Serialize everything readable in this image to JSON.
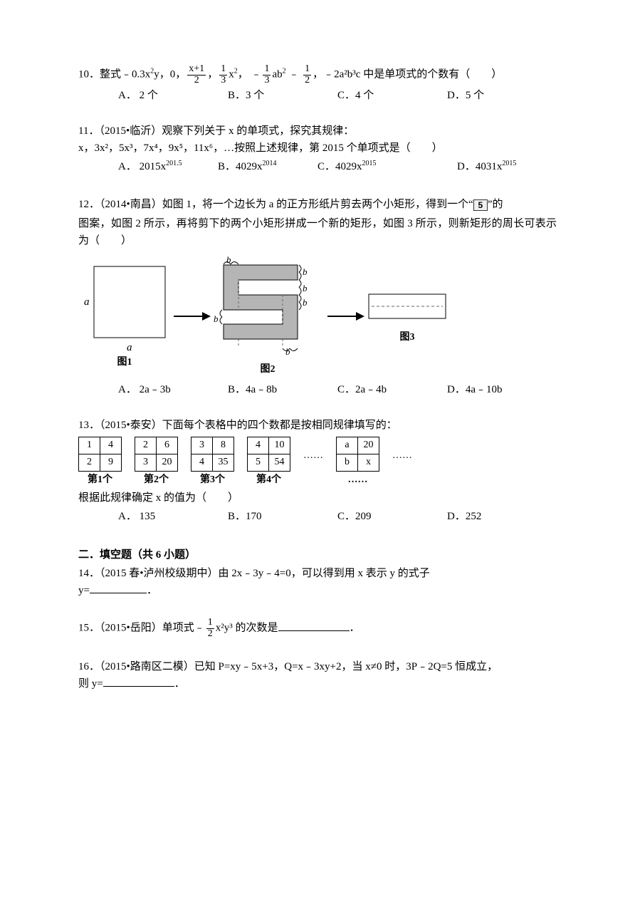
{
  "q10": {
    "prefix": "10．整式﹣0.3x",
    "mid1": "y，0，",
    "frac1_num": "x+1",
    "frac1_den": "2",
    "mid2": "，",
    "frac2_num": "1",
    "frac2_den": "3",
    "mid3": "x",
    "mid4": "，  ﹣",
    "frac3_num": "1",
    "frac3_den": "3",
    "mid5": "ab",
    "mid6": " ﹣ ",
    "frac4_num": "1",
    "frac4_den": "2",
    "suffix": "，﹣2a²b³c 中是单项式的个数有（　　）",
    "A": "A． 2 个",
    "B": "B．3 个",
    "C": "C．4 个",
    "D": "D．5 个"
  },
  "q11": {
    "line1": "11．（2015•临沂）观察下列关于 x 的单项式，探究其规律：",
    "line2a": "x，3x²，5x³，7x⁴，9x⁵，11x⁶，…按照上述规律，第 2015 个单项式是（　　）",
    "A_pre": "A． 2015x",
    "A_sup": "201.5",
    "B_pre": "B．4029x",
    "B_sup": "2014",
    "C_pre": "C．4029x",
    "C_sup": "2015",
    "D_pre": "D．4031x",
    "D_sup": "2015"
  },
  "q12": {
    "p1a": "12．（2014•南昌）如图 1，将一个边长为 a 的正方形纸片剪去两个小矩形，得到一个“",
    "p1b": "”的",
    "icon": "5",
    "p2": "图案，如图 2 所示，再将剪下的两个小矩形拼成一个新的矩形，如图 3 所示，则新矩形的周长可表示为（　　）",
    "fig1_cap": "图1",
    "fig2_cap": "图2",
    "fig3_cap": "图3",
    "label_a": "a",
    "label_b": "b",
    "A": "A． 2a﹣3b",
    "B": "B．4a﹣8b",
    "C": "C．2a﹣4b",
    "D": "D．4a﹣10b",
    "colors": {
      "arrow": "#000000",
      "fill": "#b5b5b5",
      "stroke": "#000000",
      "dash": "#666666"
    }
  },
  "q13": {
    "line1": "13．（2015•泰安）下面每个表格中的四个数都是按相同规律填写的：",
    "tables": [
      {
        "cells": [
          [
            "1",
            "4"
          ],
          [
            "2",
            "9"
          ]
        ],
        "cap": "第1个"
      },
      {
        "cells": [
          [
            "2",
            "6"
          ],
          [
            "3",
            "20"
          ]
        ],
        "cap": "第2个"
      },
      {
        "cells": [
          [
            "3",
            "8"
          ],
          [
            "4",
            "35"
          ]
        ],
        "cap": "第3个"
      },
      {
        "cells": [
          [
            "4",
            "10"
          ],
          [
            "5",
            "54"
          ]
        ],
        "cap": "第4个"
      },
      {
        "cells": [
          [
            "a",
            "20"
          ],
          [
            "b",
            "x"
          ]
        ],
        "cap": "……"
      }
    ],
    "dots": "……",
    "line2": "根据此规律确定 x 的值为（　　）",
    "A": "A． 135",
    "B": "B．170",
    "C": "C．209",
    "D": "D．252"
  },
  "section2": "二．填空题（共 6 小题）",
  "q14": {
    "line1": "14．（2015 春•泸州校级期中）由 2x﹣3y﹣4=0，可以得到用 x 表示 y 的式子",
    "line2": "y=",
    "end": "．"
  },
  "q15": {
    "pre": "15．（2015•岳阳）单项式﹣",
    "frac_num": "1",
    "frac_den": "2",
    "mid": "x²y³ 的次数是",
    "end": "．"
  },
  "q16": {
    "line1": "16．（2015•路南区二模）已知 P=xy﹣5x+3，Q=x﹣3xy+2，当 x≠0 时，3P﹣2Q=5 恒成立，",
    "line2": "则 y=",
    "end": "．"
  }
}
